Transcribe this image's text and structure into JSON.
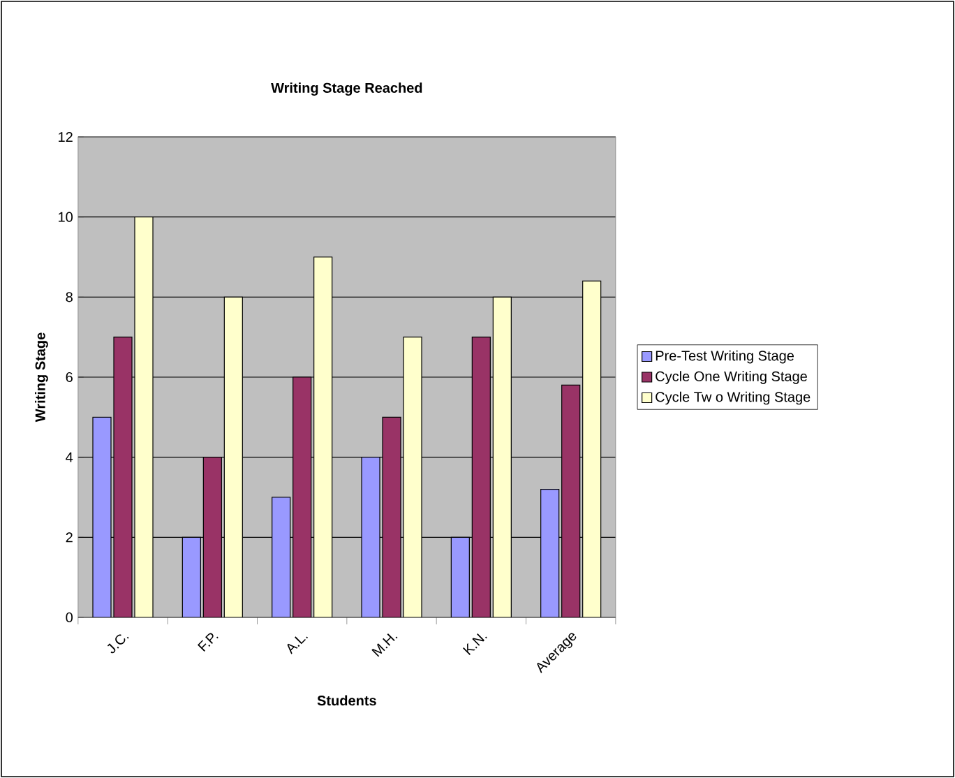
{
  "chart_data": {
    "type": "bar",
    "title": "Writing Stage Reached",
    "xlabel": "Students",
    "ylabel": "Writing Stage",
    "categories": [
      "J.C.",
      "F.P.",
      "A.L.",
      "M.H.",
      "K.N.",
      "Average"
    ],
    "series": [
      {
        "name": "Pre-Test Writing Stage",
        "color": "#9999ff",
        "values": [
          5,
          2,
          3,
          4,
          2,
          3.2
        ]
      },
      {
        "name": "Cycle One Writing Stage",
        "color": "#993366",
        "values": [
          7,
          4,
          6,
          5,
          7,
          5.8
        ]
      },
      {
        "name": "Cycle Tw o Writing Stage",
        "color": "#ffffcc",
        "values": [
          10,
          8,
          9,
          7,
          8,
          8.4
        ]
      }
    ],
    "ylim": [
      0,
      12
    ],
    "yticks": [
      0,
      2,
      4,
      6,
      8,
      10,
      12
    ],
    "grid": "y",
    "legend": "right"
  }
}
